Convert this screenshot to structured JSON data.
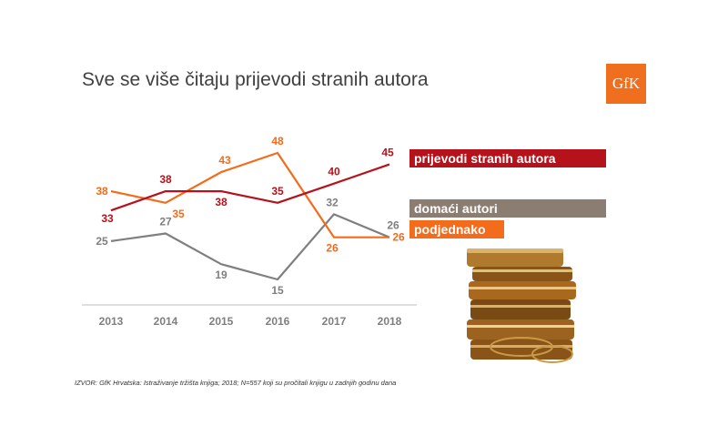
{
  "title": "Sve se više čitaju prijevodi stranih autora",
  "logo_text": "GfK",
  "source": "IZVOR: GfK Hrvatska: Istraživanje tržišta knjiga; 2018; N=557 koji su pročitali knjigu u zadnjih godinu dana",
  "colors": {
    "red": "#b5121b",
    "gray": "#7f7f7f",
    "orange": "#f26c1c"
  },
  "chart_data": {
    "type": "line",
    "categories": [
      "2013",
      "2014",
      "2015",
      "2016",
      "2017",
      "2018"
    ],
    "series": [
      {
        "name": "prijevodi stranih autora",
        "color": "#b5121b",
        "values": [
          33,
          38,
          38,
          35,
          40,
          45
        ]
      },
      {
        "name": "domaći autori",
        "color": "#7f7f7f",
        "values": [
          25,
          27,
          19,
          15,
          32,
          26
        ]
      },
      {
        "name": "podjednako",
        "color": "#f26c1c",
        "values": [
          38,
          35,
          43,
          48,
          26,
          26
        ]
      }
    ],
    "legend": "right",
    "grid": false
  }
}
